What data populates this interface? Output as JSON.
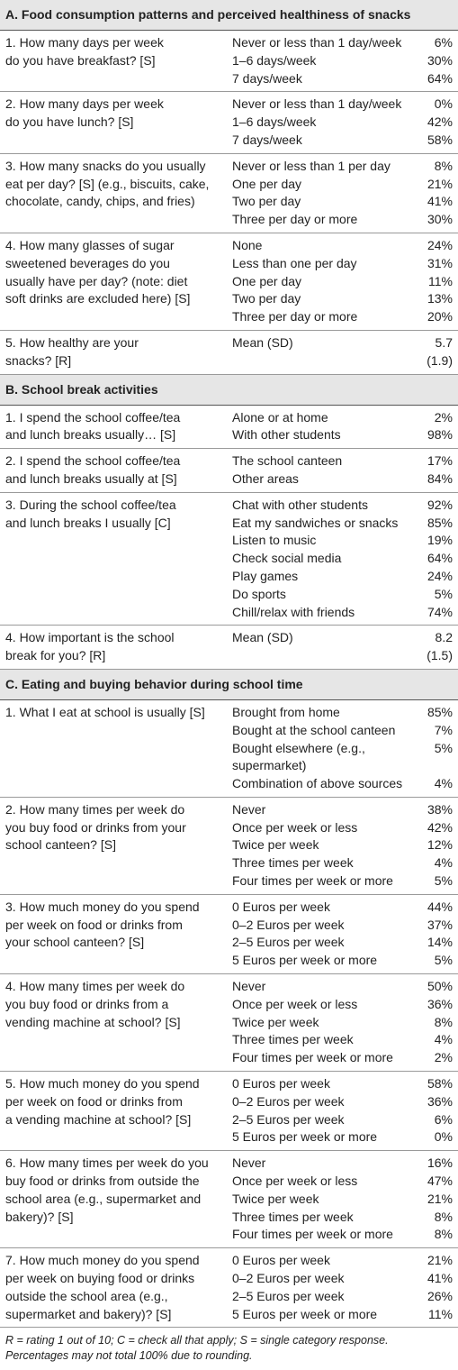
{
  "sections": [
    {
      "title": "A. Food consumption patterns and perceived healthiness of snacks",
      "rows": [
        {
          "question": [
            "1. How many days per week",
            "do you have breakfast? [S]"
          ],
          "options": [
            {
              "label": "Never or less than 1 day/week",
              "value": "6%"
            },
            {
              "label": "1–6 days/week",
              "value": "30%"
            },
            {
              "label": "7 days/week",
              "value": "64%"
            }
          ]
        },
        {
          "question": [
            "2. How many days per week",
            "do you have lunch? [S]"
          ],
          "options": [
            {
              "label": "Never or less than 1 day/week",
              "value": "0%"
            },
            {
              "label": "1–6 days/week",
              "value": "42%"
            },
            {
              "label": "7 days/week",
              "value": "58%"
            }
          ]
        },
        {
          "question": [
            "3. How many snacks do you usually",
            "eat per day? [S] (e.g., biscuits, cake,",
            "chocolate, candy, chips, and fries)"
          ],
          "options": [
            {
              "label": "Never or less than 1 per day",
              "value": "8%"
            },
            {
              "label": "One per day",
              "value": "21%"
            },
            {
              "label": "Two per day",
              "value": "41%"
            },
            {
              "label": "Three per day or more",
              "value": "30%"
            }
          ]
        },
        {
          "question": [
            "4. How many glasses of sugar",
            "sweetened beverages do you",
            "usually have per day? (note: diet",
            "soft drinks are excluded here) [S]"
          ],
          "options": [
            {
              "label": "None",
              "value": "24%"
            },
            {
              "label": "Less than one per day",
              "value": "31%"
            },
            {
              "label": "One per day",
              "value": "11%"
            },
            {
              "label": "Two per day",
              "value": "13%"
            },
            {
              "label": "Three per day or more",
              "value": "20%"
            }
          ]
        },
        {
          "question": [
            "5. How healthy are your",
            "snacks? [R]"
          ],
          "options": [
            {
              "label": "Mean (SD)",
              "value": "5.7",
              "sd": "(1.9)"
            }
          ]
        }
      ]
    },
    {
      "title": "B. School break activities",
      "rows": [
        {
          "question": [
            "1. I spend the school coffee/tea",
            "and lunch breaks usually… [S]"
          ],
          "options": [
            {
              "label": "Alone or at home",
              "value": "2%"
            },
            {
              "label": "With other students",
              "value": "98%"
            }
          ]
        },
        {
          "question": [
            "2. I spend the school coffee/tea",
            "and lunch breaks usually at [S]"
          ],
          "options": [
            {
              "label": "The school canteen",
              "value": "17%"
            },
            {
              "label": "Other areas",
              "value": "84%"
            }
          ]
        },
        {
          "question": [
            "3. During the school coffee/tea",
            "and lunch breaks I usually [C]"
          ],
          "options": [
            {
              "label": "Chat with other students",
              "value": "92%"
            },
            {
              "label": "Eat my sandwiches or snacks",
              "value": "85%"
            },
            {
              "label": "Listen to music",
              "value": "19%"
            },
            {
              "label": "Check social media",
              "value": "64%"
            },
            {
              "label": "Play games",
              "value": "24%"
            },
            {
              "label": "Do sports",
              "value": "5%"
            },
            {
              "label": "Chill/relax with friends",
              "value": "74%"
            }
          ]
        },
        {
          "question": [
            "4. How important is the school",
            "break for you? [R]"
          ],
          "options": [
            {
              "label": "Mean (SD)",
              "value": "8.2",
              "sd": "(1.5)"
            }
          ]
        }
      ]
    },
    {
      "title": "C. Eating and buying behavior during school time",
      "rows": [
        {
          "question": [
            "1. What I eat at school is usually [S]"
          ],
          "options": [
            {
              "label": "Brought from home",
              "value": "85%"
            },
            {
              "label": "Bought at the school canteen",
              "value": "7%"
            },
            {
              "label": [
                "Bought elsewhere (e.g.,",
                "supermarket)"
              ],
              "value": "5%"
            },
            {
              "label": "Combination of above sources",
              "value": "4%"
            }
          ]
        },
        {
          "question": [
            "2. How many times per week do",
            "you buy food or drinks from your",
            "school canteen? [S]"
          ],
          "options": [
            {
              "label": "Never",
              "value": "38%"
            },
            {
              "label": "Once per week or less",
              "value": "42%"
            },
            {
              "label": "Twice per week",
              "value": "12%"
            },
            {
              "label": "Three times per week",
              "value": "4%"
            },
            {
              "label": "Four times per week or more",
              "value": "5%"
            }
          ]
        },
        {
          "question": [
            "3. How much money do you spend",
            "per week on food or drinks from",
            "your school canteen? [S]"
          ],
          "options": [
            {
              "label": "0 Euros per week",
              "value": "44%"
            },
            {
              "label": "0–2 Euros per week",
              "value": "37%"
            },
            {
              "label": "2–5 Euros per week",
              "value": "14%"
            },
            {
              "label": "5 Euros per week or more",
              "value": "5%"
            }
          ]
        },
        {
          "question": [
            "4. How many times per week do",
            "you buy food or drinks from a",
            "vending machine at school? [S]"
          ],
          "options": [
            {
              "label": "Never",
              "value": "50%"
            },
            {
              "label": "Once per week or less",
              "value": "36%"
            },
            {
              "label": "Twice per week",
              "value": "8%"
            },
            {
              "label": "Three times per week",
              "value": "4%"
            },
            {
              "label": "Four times per week or more",
              "value": "2%"
            }
          ]
        },
        {
          "question": [
            "5. How much money do you spend",
            "per week on food or drinks from",
            "a vending machine at school? [S]"
          ],
          "options": [
            {
              "label": "0 Euros per week",
              "value": "58%"
            },
            {
              "label": "0–2 Euros per week",
              "value": "36%"
            },
            {
              "label": "2–5 Euros per week",
              "value": "6%"
            },
            {
              "label": "5 Euros per week or more",
              "value": "0%"
            }
          ]
        },
        {
          "question": [
            "6. How many times per week do you",
            "buy food or drinks from outside the",
            "school area (e.g., supermarket and",
            "bakery)? [S]"
          ],
          "options": [
            {
              "label": "Never",
              "value": "16%"
            },
            {
              "label": "Once per week or less",
              "value": "47%"
            },
            {
              "label": "Twice per week",
              "value": "21%"
            },
            {
              "label": "Three times per week",
              "value": "8%"
            },
            {
              "label": "Four times per week or more",
              "value": "8%"
            }
          ]
        },
        {
          "question": [
            "7. How much money do you spend",
            "per week on buying food or drinks",
            "outside the school area (e.g.,",
            "supermarket and bakery)? [S]"
          ],
          "options": [
            {
              "label": "0 Euros per week",
              "value": "21%"
            },
            {
              "label": "0–2 Euros per week",
              "value": "41%"
            },
            {
              "label": "2–5 Euros per week",
              "value": "26%"
            },
            {
              "label": "5 Euros per week or more",
              "value": "11%"
            }
          ]
        }
      ]
    }
  ],
  "footnote": [
    "R = rating 1 out of 10; C = check all that apply; S = single category response.",
    "Percentages may not total 100% due to rounding."
  ]
}
